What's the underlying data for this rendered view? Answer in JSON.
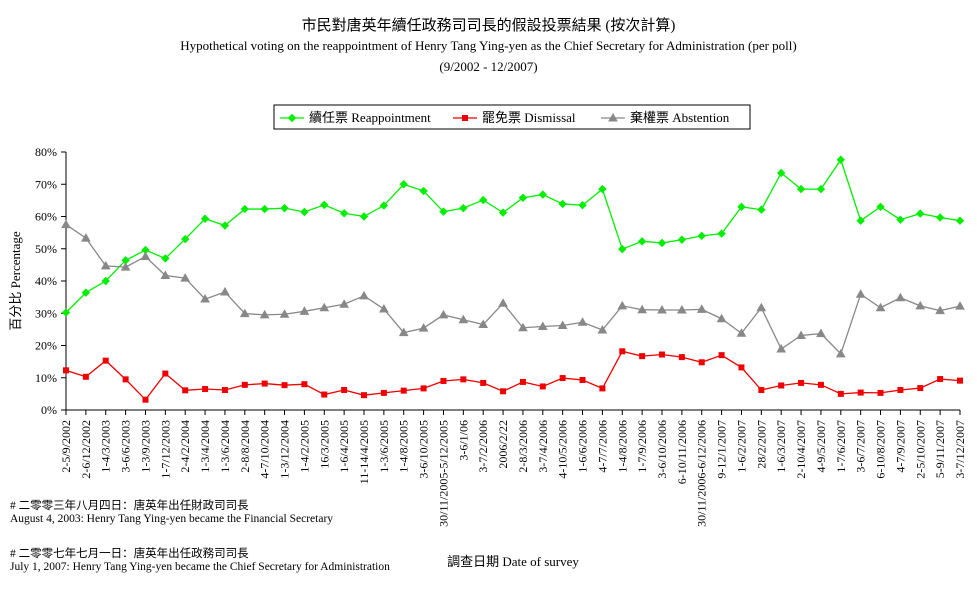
{
  "chart_data": {
    "type": "line",
    "title": "市民對唐英年續任政務司司長的假設投票結果 (按次計算)",
    "subtitle": "Hypothetical voting on the reappointment of Henry Tang Ying-yen as the Chief Secretary for Administration (per poll)",
    "period": "(9/2002 - 12/2007)",
    "xlabel": "調查日期 Date of survey",
    "ylabel": "百分比 Percentage",
    "ylim": [
      0,
      80
    ],
    "yticks": [
      "0%",
      "10%",
      "20%",
      "30%",
      "40%",
      "50%",
      "60%",
      "70%",
      "80%"
    ],
    "legend_position": "top-center",
    "categories": [
      "2-5/9/2002",
      "2-6/12/2002",
      "1-4/3/2003",
      "3-6/6/2003",
      "1-3/9/2003",
      "1-7/12/2003",
      "2-4/2/2004",
      "1-3/4/2004",
      "1-3/6/2004",
      "2-8/8/2004",
      "4-7/10/2004",
      "1-3/12/2004",
      "1-4/2/2005",
      "16/3/2005",
      "1-6/4/2005",
      "11-14/4/2005",
      "1-3/6/2005",
      "1-4/8/2005",
      "3-6/10/2005",
      "30/11/2005-5/12/2005",
      "3-6/1/06",
      "3-7/2/2006",
      "2006/2/22",
      "2-8/3/2006",
      "3-7/4/2006",
      "4-10/5/2006",
      "1-6/6/2006",
      "4-7/7/2006",
      "1-4/8/2006",
      "1-7/9/2006",
      "3-6/10/2006",
      "6-10/11/2006",
      "30/11/2006-6/12/2006",
      "9-12/1/2007",
      "1-6/2/2007",
      "28/2/2007",
      "1-6/3/2007",
      "2-10/4/2007",
      "4-9/5/2007",
      "1-7/6/2007",
      "3-6/7/2007",
      "6-10/8/2007",
      "4-7/9/2007",
      "2-5/10/2007",
      "5-9/11/2007",
      "3-7/12/2007"
    ],
    "series": [
      {
        "name": "續任票 Reappointment",
        "color": "#00ee00",
        "marker": "diamond",
        "values": [
          30.2,
          36.4,
          40,
          46.4,
          49.6,
          47,
          53,
          59.3,
          57.2,
          62.3,
          62.3,
          62.6,
          61.4,
          63.6,
          61,
          60,
          63.4,
          70,
          67.9,
          61.5,
          62.6,
          65.1,
          61.2,
          65.8,
          66.8,
          63.9,
          63.5,
          68.5,
          49.9,
          52.3,
          51.8,
          52.8,
          54,
          54.7,
          63,
          62.1,
          73.5,
          68.5,
          68.5,
          77.6,
          58.7,
          63,
          59,
          60.9,
          59.7,
          58.7
        ]
      },
      {
        "name": "罷免票 Dismissal",
        "color": "#ee0000",
        "marker": "square",
        "values": [
          12.3,
          10.3,
          15.3,
          9.5,
          3.2,
          11.3,
          6.1,
          6.5,
          6.2,
          7.8,
          8.2,
          7.7,
          8,
          4.8,
          6.2,
          4.6,
          5.3,
          6,
          6.7,
          9,
          9.5,
          8.4,
          5.8,
          8.7,
          7.3,
          9.9,
          9.3,
          6.7,
          18.2,
          16.7,
          17.2,
          16.4,
          14.8,
          17,
          13.2,
          6.2,
          7.6,
          8.4,
          7.8,
          5,
          5.4,
          5.3,
          6.2,
          6.8,
          9.6,
          9.1
        ]
      },
      {
        "name": "棄權票 Abstention",
        "color": "#888888",
        "marker": "triangle",
        "values": [
          57.5,
          53.3,
          44.7,
          44.3,
          47.6,
          41.7,
          40.9,
          34.4,
          36.6,
          29.9,
          29.5,
          29.7,
          30.6,
          31.7,
          32.8,
          35.4,
          31.3,
          24,
          25.4,
          29.5,
          28,
          26.5,
          33.1,
          25.5,
          25.9,
          26.2,
          27.2,
          24.8,
          32.3,
          31.1,
          31,
          31,
          31.2,
          28.3,
          23.8,
          31.7,
          18.9,
          23.1,
          23.7,
          17.4,
          35.9,
          31.7,
          34.8,
          32.3,
          30.8,
          32.2
        ]
      }
    ]
  },
  "notes": [
    "# 二零零三年八月四日：唐英年出任財政司司長",
    "August 4, 2003: Henry Tang Ying-yen became the Financial Secretary",
    "# 二零零七年七月一日：唐英年出任政務司司長",
    "July 1, 2007: Henry Tang Ying-yen became the Chief Secretary for Administration"
  ]
}
